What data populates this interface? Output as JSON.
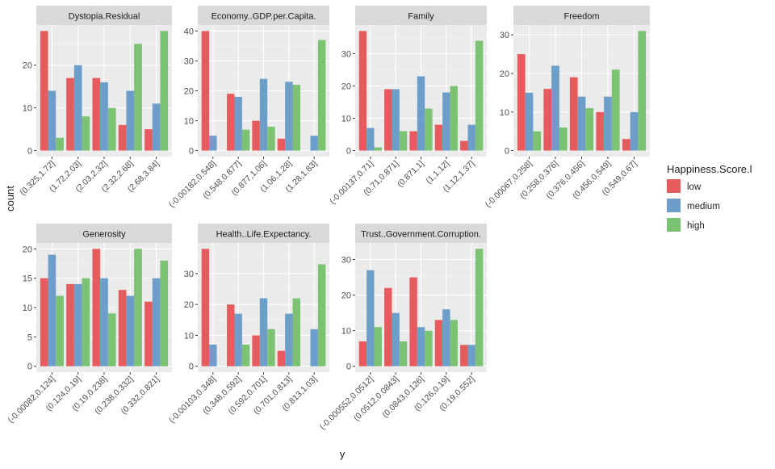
{
  "xlabel": "y",
  "ylabel": "count",
  "legend": {
    "title": "Happiness.Score.l",
    "labels": [
      "low",
      "medium",
      "high"
    ],
    "placement": "right"
  },
  "colors": {
    "low": "#E55B5E",
    "medium": "#6C9EC9",
    "high": "#7BC273"
  },
  "chart_data": [
    {
      "type": "bar",
      "title": "Dystopia.Residual",
      "categories": [
        "(0.325,1.72]",
        "(1.72,2.03]",
        "(2.03,2.32]",
        "(2.32,2.68]",
        "(2.68,3.84]"
      ],
      "series": [
        {
          "name": "low",
          "values": [
            28,
            17,
            17,
            6,
            5
          ]
        },
        {
          "name": "medium",
          "values": [
            14,
            20,
            16,
            14,
            11
          ]
        },
        {
          "name": "high",
          "values": [
            3,
            8,
            10,
            25,
            28
          ]
        }
      ],
      "ylim": [
        0,
        28
      ],
      "yticks": [
        0,
        10,
        20
      ]
    },
    {
      "type": "bar",
      "title": "Economy..GDP.per.Capita.",
      "categories": [
        "(-0.00182,0.548]",
        "(0.548,0.877]",
        "(0.877,1.06]",
        "(1.06,1.28]",
        "(1.28,1.83]"
      ],
      "series": [
        {
          "name": "low",
          "values": [
            40,
            19,
            10,
            4,
            0
          ]
        },
        {
          "name": "medium",
          "values": [
            5,
            18,
            24,
            23,
            5
          ]
        },
        {
          "name": "high",
          "values": [
            0,
            7,
            8,
            22,
            37
          ]
        }
      ],
      "ylim": [
        0,
        40
      ],
      "yticks": [
        0,
        10,
        20,
        30,
        40
      ]
    },
    {
      "type": "bar",
      "title": "Family",
      "categories": [
        "(-0.00137,0.71]",
        "(0.71,0.871]",
        "(0.871,1]",
        "(1,1.12]",
        "(1.12,1.37]"
      ],
      "series": [
        {
          "name": "low",
          "values": [
            37,
            19,
            6,
            8,
            3
          ]
        },
        {
          "name": "medium",
          "values": [
            7,
            19,
            23,
            18,
            8
          ]
        },
        {
          "name": "high",
          "values": [
            1,
            6,
            13,
            20,
            34
          ]
        }
      ],
      "ylim": [
        0,
        37
      ],
      "yticks": [
        0,
        10,
        20,
        30
      ]
    },
    {
      "type": "bar",
      "title": "Freedom",
      "categories": [
        "(-0.00067,0.258]",
        "(0.258,0.376]",
        "(0.376,0.456]",
        "(0.456,0.549]",
        "(0.549,0.67]"
      ],
      "series": [
        {
          "name": "low",
          "values": [
            25,
            16,
            19,
            10,
            3
          ]
        },
        {
          "name": "medium",
          "values": [
            15,
            22,
            14,
            14,
            10
          ]
        },
        {
          "name": "high",
          "values": [
            5,
            6,
            11,
            21,
            31
          ]
        }
      ],
      "ylim": [
        0,
        31
      ],
      "yticks": [
        0,
        10,
        20,
        30
      ]
    },
    {
      "type": "bar",
      "title": "Generosity",
      "categories": [
        "(-0.00082,0.124]",
        "(0.124,0.19]",
        "(0.19,0.238]",
        "(0.238,0.332]",
        "(0.332,0.821]"
      ],
      "series": [
        {
          "name": "low",
          "values": [
            15,
            14,
            20,
            13,
            11
          ]
        },
        {
          "name": "medium",
          "values": [
            19,
            14,
            15,
            12,
            15
          ]
        },
        {
          "name": "high",
          "values": [
            12,
            15,
            9,
            20,
            18
          ]
        }
      ],
      "ylim": [
        0,
        20
      ],
      "yticks": [
        0,
        5,
        10,
        15,
        20
      ]
    },
    {
      "type": "bar",
      "title": "Health..Life.Expectancy.",
      "categories": [
        "(-0.00103,0.348]",
        "(0.348,0.592]",
        "(0.592,0.701]",
        "(0.701,0.813]",
        "(0.813,1.03]"
      ],
      "series": [
        {
          "name": "low",
          "values": [
            38,
            20,
            10,
            5,
            0
          ]
        },
        {
          "name": "medium",
          "values": [
            7,
            17,
            22,
            17,
            12
          ]
        },
        {
          "name": "high",
          "values": [
            0,
            7,
            12,
            22,
            33
          ]
        }
      ],
      "ylim": [
        0,
        38
      ],
      "yticks": [
        0,
        10,
        20,
        30
      ]
    },
    {
      "type": "bar",
      "title": "Trust..Government.Corruption.",
      "categories": [
        "(-0.000552,0.0512]",
        "(0.0512,0.0843]",
        "(0.0843,0.126]",
        "(0.126,0.19]",
        "(0.19,0.552]"
      ],
      "series": [
        {
          "name": "low",
          "values": [
            7,
            22,
            25,
            13,
            6
          ]
        },
        {
          "name": "medium",
          "values": [
            27,
            15,
            11,
            16,
            6
          ]
        },
        {
          "name": "high",
          "values": [
            11,
            7,
            10,
            13,
            33
          ]
        }
      ],
      "ylim": [
        0,
        33
      ],
      "yticks": [
        0,
        10,
        20,
        30
      ]
    }
  ]
}
